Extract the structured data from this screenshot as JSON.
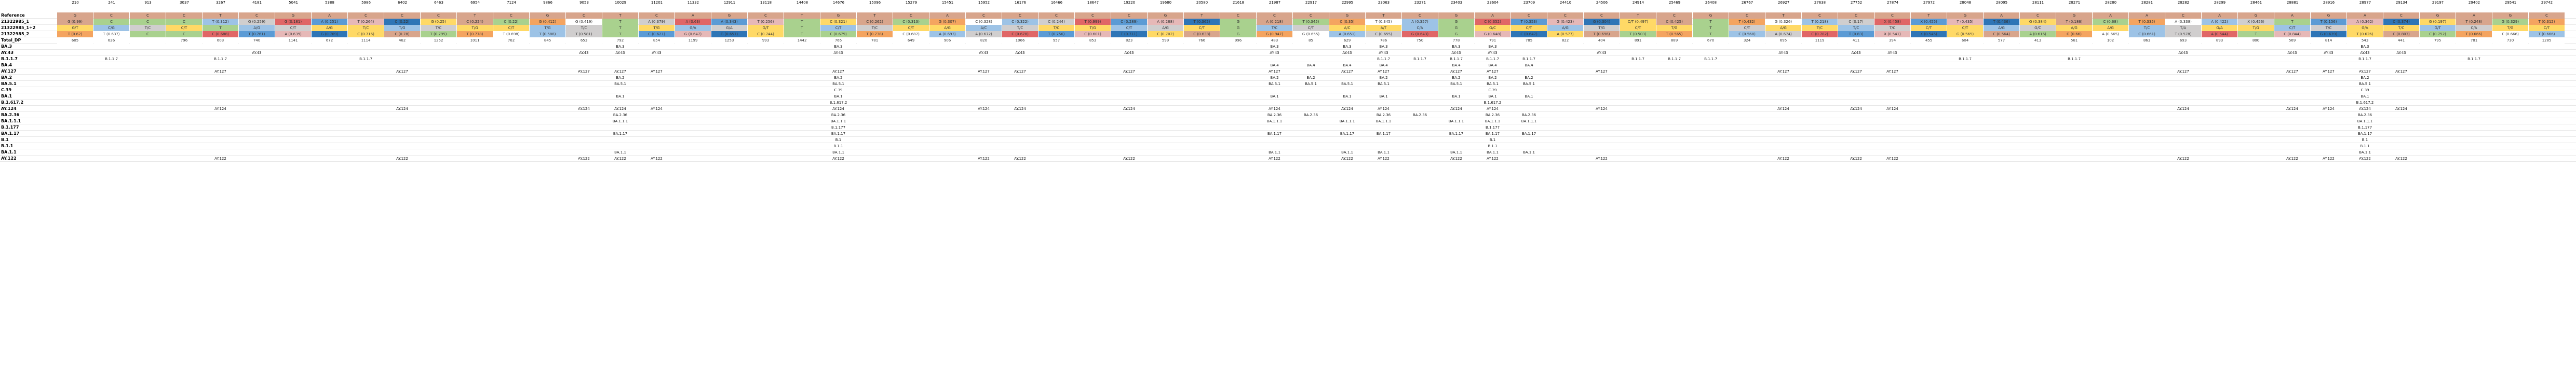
{
  "sheet": {
    "header_values": [
      "210",
      "241",
      "913",
      "3037",
      "3267",
      "4181",
      "5041",
      "5388",
      "5986",
      "6402",
      "6463",
      "6954",
      "7124",
      "9866",
      "9053",
      "10029",
      "11201",
      "11332",
      "12911",
      "13118",
      "14408",
      "14676",
      "15096",
      "15279",
      "15451",
      "15952",
      "16176",
      "16466",
      "18647",
      "19220",
      "19680",
      "20580",
      "21618",
      "21987",
      "22917",
      "22995",
      "23063",
      "23271",
      "23403",
      "23604",
      "23709",
      "24410",
      "24506",
      "24914",
      "25469",
      "26408",
      "26767",
      "26927",
      "27638",
      "27752",
      "27874",
      "27972",
      "28048",
      "28095",
      "28111",
      "28271",
      "28280",
      "28281",
      "28282",
      "28299",
      "28461",
      "28881",
      "28916",
      "28977",
      "29134",
      "29197",
      "29402",
      "29541",
      "29742"
    ],
    "row_labels": [
      "Reference",
      "21322985_1",
      "21322985_1+2",
      "21322985_2",
      "Total_DP",
      "BA.3",
      "AY.43",
      "B.1.1.7",
      "BA.4",
      "AY.127",
      "BA.2",
      "BA.5.1",
      "C.39",
      "BA.1",
      "B.1.617.2",
      "AY.124",
      "BA.2.36",
      "BA.1.1.1",
      "B.1.177",
      "BA.1.17",
      "B.1",
      "B.1.1",
      "BA.1.1",
      "AY.122"
    ],
    "rows": {
      "reference": [
        "G",
        "C",
        "C",
        "C",
        "T",
        "C",
        "G",
        "A",
        "C",
        "C",
        "C",
        "T",
        "C",
        "G",
        "C",
        "T",
        "C",
        "A",
        "G",
        "C",
        "T",
        "G",
        "T",
        "C",
        "A",
        "C",
        "C",
        "C",
        "C",
        "C",
        "G",
        "T",
        "C",
        "C",
        "C",
        "G",
        "T",
        "C",
        "G",
        "A",
        "C",
        "C",
        "C",
        "T",
        "C",
        "G",
        "C",
        "T",
        "C",
        "C",
        "C",
        "T",
        "G",
        "A",
        "C",
        "G",
        "A",
        "A",
        "C",
        "A",
        "G",
        "A",
        "G",
        "A",
        "C",
        "G",
        "A",
        "G",
        "C"
      ],
      "sample1": [
        "G (0.99)",
        "C",
        "C",
        "C",
        "T (0.312)",
        "G (0.259)",
        "G (0.181)",
        "A (0.251)",
        "T (0.264)",
        "C (0.22)",
        "G (0.25)",
        "C (0.224)",
        "C (0.22)",
        "G (0.412)",
        "G (0.419)",
        "T",
        "A (0.379)",
        "A (0.63)",
        "A (0.343)",
        "T (0.256)",
        "T",
        "C (0.321)",
        "C (0.262)",
        "C (0.313)",
        "G (0.307)",
        "C (0.328)",
        "C (0.322)",
        "C (0.244)",
        "T (0.999)",
        "C (0.289)",
        "A (0.288)",
        "T (0.362)",
        "G",
        "A (0.218)",
        "T (0.345)",
        "C (0.35)",
        "T (0.345)",
        "A (0.357)",
        "G",
        "C (0.352)",
        "T (0.353)",
        "G (0.423)",
        "G (0.304)",
        "C/T (0.497)",
        "C (0.425)",
        "T",
        "T (0.432)",
        "G (0.326)",
        "T (0.218)",
        "C (0.17)",
        "X (0.458)",
        "X (0.455)",
        "T (0.435)",
        "T (0.436)",
        "G (0.384)",
        "T (0.186)",
        "C (0.68)",
        "T (0.335)",
        "A (0.338)",
        "A (0.422)",
        "X (0.456)",
        "T",
        "T (0.156)",
        "A (0.362)",
        "C (0.374)",
        "G (0.197)",
        "T (0.248)",
        "G (0.329)",
        "T (0.312)"
      ],
      "sample12": [
        "G/T",
        "C/G",
        "T/C",
        "C/T",
        "T",
        "A/G",
        "C/T",
        "A/G",
        "T/C",
        "T/G",
        "T/C",
        "T/G",
        "C/T",
        "T/G",
        "T/C",
        "T",
        "T/G",
        "G/A",
        "G/A",
        "G/T",
        "T",
        "C/T",
        "T/C",
        "C/T",
        "A/G",
        "A/C",
        "T/C",
        "T/C",
        "T/G",
        "C/T",
        "A/G",
        "C/T",
        "G",
        "T/C",
        "C/T",
        "A/C",
        "A/T",
        "C/A",
        "G",
        "G/C",
        "C/T",
        "A/G",
        "T/G",
        "C/T",
        "T/G",
        "T",
        "C/T",
        "A/G",
        "T/C",
        "T/C",
        "T/C",
        "C/T",
        "C/T",
        "A/G",
        "G/C",
        "A/G",
        "A/G",
        "T/C",
        "T/A",
        "G/A",
        "T/G",
        "C/T",
        "T/C",
        "G/A",
        "T/C",
        "G/T",
        "C/A",
        "T/G",
        "C/T"
      ],
      "sample2": [
        "T (0.62)",
        "T (0.637)",
        "C",
        "C",
        "C (0.688)",
        "T (0.761)",
        "A (0.639)",
        "G (0.769)",
        "C (0.716)",
        "C (0.78)",
        "T (0.795)",
        "T (0.778)",
        "T (0.698)",
        "T (0.588)",
        "T (0.581)",
        "T",
        "C (0.621)",
        "G (0.647)",
        "G (0.657)",
        "C (0.744)",
        "T",
        "C (0.679)",
        "T (0.738)",
        "C (0.687)",
        "A (0.693)",
        "A (0.672)",
        "C (0.678)",
        "T (0.756)",
        "C (0.601)",
        "T (0.711)",
        "C (0.702)",
        "C (0.638)",
        "G",
        "G (0.947)",
        "G (0.655)",
        "A (0.651)",
        "C (0.655)",
        "G (0.643)",
        "G",
        "G (0.648)",
        "C (0.647)",
        "A (0.577)",
        "T (0.696)",
        "T (0.503)",
        "T (0.565)",
        "T",
        "C (0.568)",
        "A (0.674)",
        "C (0.782)",
        "T (0.83)",
        "X (0.541)",
        "X (0.545)",
        "G (0.565)",
        "C (0.564)",
        "A (0.616)",
        "G (0.66)",
        "A (0.665)",
        "C (0.661)",
        "T (0.578)",
        "A (0.544)",
        "T",
        "C (0.844)",
        "G (0.639)",
        "T (0.626)",
        "C (0.803)",
        "C (0.752)",
        "T (0.666)",
        "C (0.666)",
        "T (0.666)"
      ],
      "total_dp": [
        "605",
        "626",
        "",
        "796",
        "603",
        "740",
        "1141",
        "672",
        "1114",
        "462",
        "1252",
        "1011",
        "762",
        "845",
        "653",
        "792",
        "854",
        "1199",
        "1253",
        "993",
        "1442",
        "765",
        "781",
        "649",
        "906",
        "820",
        "1066",
        "957",
        "853",
        "823",
        "599",
        "766",
        "996",
        "483",
        "85",
        "629",
        "786",
        "750",
        "778",
        "791",
        "785",
        "822",
        "404",
        "891",
        "889",
        "670",
        "324",
        "695",
        "1119",
        "411",
        "394",
        "455",
        "604",
        "577",
        "413",
        "561",
        "102",
        "863",
        "693",
        "893",
        "800",
        "569",
        "814",
        "543",
        "441",
        "795",
        "781",
        "730",
        "1285"
      ]
    },
    "lineages": {
      "ba3": "BA.3",
      "ay43": "AY.43",
      "b117": "B.1.1.7",
      "ba4": "BA.4",
      "ay127": "AY.127",
      "ba2": "BA.2",
      "ba51": "BA.5.1",
      "c39": "C.39",
      "ba1": "BA.1",
      "b16172": "B.1.617.2",
      "ay124": "AY.124",
      "ba236": "BA.2.36",
      "ba111": "BA.1.1.1",
      "b1177": "B.1.177",
      "ba117": "BA.1.17",
      "b1": "B.1",
      "b11": "B.1.1",
      "ba11": "BA.1.1",
      "ay122": "AY.122"
    },
    "colors": {
      "orange": "#f4a460",
      "blue": "#5b9bd5",
      "lightblue": "#9dc3e6",
      "deepblue": "#2e75b6",
      "yellow": "#ffd966",
      "green": "#a9d18e",
      "tan": "#d8a58c",
      "red": "#e06666",
      "rose": "#e6b8b7",
      "gray": "#d0cece",
      "white": "#ffffff"
    }
  }
}
